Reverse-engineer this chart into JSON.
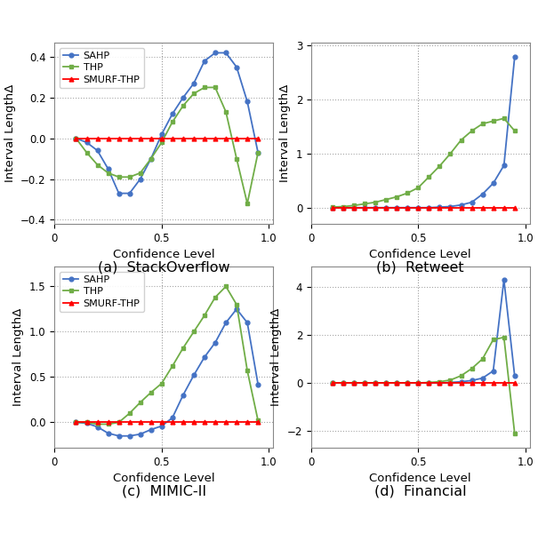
{
  "confidence_levels": [
    0.1,
    0.15,
    0.2,
    0.25,
    0.3,
    0.35,
    0.4,
    0.45,
    0.5,
    0.55,
    0.6,
    0.65,
    0.7,
    0.75,
    0.8,
    0.85,
    0.9,
    0.95
  ],
  "stackoverflow": {
    "SAHP": [
      0.0,
      -0.02,
      -0.06,
      -0.15,
      -0.27,
      -0.27,
      -0.2,
      -0.1,
      0.02,
      0.12,
      0.2,
      0.27,
      0.38,
      0.42,
      0.42,
      0.35,
      0.18,
      -0.07
    ],
    "THP": [
      0.0,
      -0.07,
      -0.13,
      -0.17,
      -0.19,
      -0.19,
      -0.17,
      -0.1,
      -0.02,
      0.08,
      0.16,
      0.22,
      0.25,
      0.25,
      0.13,
      -0.1,
      -0.32,
      -0.07
    ],
    "SMURF-THP": [
      0.0,
      0.0,
      0.0,
      0.0,
      0.0,
      0.0,
      0.0,
      0.0,
      0.0,
      0.0,
      0.0,
      0.0,
      0.0,
      0.0,
      0.0,
      0.0,
      0.0,
      0.0
    ],
    "ylim": [
      -0.42,
      0.47
    ],
    "yticks": [
      -0.4,
      -0.2,
      0.0,
      0.2,
      0.4
    ],
    "title": "(a)  StackOverflow",
    "legend": true
  },
  "retweet": {
    "SAHP": [
      0.0,
      0.0,
      0.0,
      0.0,
      0.0,
      0.0,
      0.0,
      0.0,
      0.0,
      0.0,
      0.01,
      0.02,
      0.05,
      0.1,
      0.25,
      0.45,
      0.78,
      2.78
    ],
    "THP": [
      0.01,
      0.02,
      0.04,
      0.07,
      0.1,
      0.15,
      0.2,
      0.27,
      0.37,
      0.57,
      0.77,
      1.0,
      1.25,
      1.42,
      1.55,
      1.6,
      1.65,
      1.42
    ],
    "SMURF-THP": [
      0.0,
      0.0,
      0.0,
      0.0,
      0.0,
      0.0,
      0.0,
      0.0,
      0.0,
      0.0,
      0.0,
      0.0,
      0.0,
      0.0,
      0.0,
      0.0,
      0.0,
      0.0
    ],
    "ylim": [
      -0.3,
      3.05
    ],
    "yticks": [
      0,
      1,
      2,
      3
    ],
    "title": "(b)  Retweet",
    "legend": false
  },
  "mimic": {
    "SAHP": [
      0.0,
      -0.01,
      -0.05,
      -0.12,
      -0.15,
      -0.15,
      -0.13,
      -0.08,
      -0.04,
      0.05,
      0.3,
      0.52,
      0.72,
      0.88,
      1.1,
      1.25,
      1.1,
      0.42
    ],
    "THP": [
      0.0,
      0.0,
      -0.02,
      -0.02,
      0.0,
      0.1,
      0.22,
      0.33,
      0.43,
      0.62,
      0.82,
      1.0,
      1.18,
      1.38,
      1.5,
      1.3,
      0.57,
      0.02
    ],
    "SMURF-THP": [
      0.0,
      0.0,
      0.0,
      0.0,
      0.0,
      0.0,
      0.0,
      0.0,
      0.0,
      0.0,
      0.0,
      0.0,
      0.0,
      0.0,
      0.0,
      0.0,
      0.0,
      0.0
    ],
    "ylim": [
      -0.28,
      1.72
    ],
    "yticks": [
      0.0,
      0.5,
      1.0,
      1.5
    ],
    "title": "(c)  MIMIC-II",
    "legend": true
  },
  "financial": {
    "SAHP": [
      0.0,
      0.0,
      0.0,
      0.0,
      0.0,
      0.0,
      0.0,
      0.0,
      0.0,
      0.0,
      0.0,
      0.02,
      0.05,
      0.1,
      0.2,
      0.5,
      4.3,
      0.3
    ],
    "THP": [
      0.0,
      0.0,
      0.0,
      0.0,
      0.0,
      0.0,
      0.0,
      0.0,
      0.0,
      0.02,
      0.05,
      0.12,
      0.3,
      0.6,
      1.0,
      1.8,
      1.9,
      -2.1
    ],
    "SMURF-THP": [
      0.0,
      0.0,
      0.0,
      0.0,
      0.0,
      0.0,
      0.0,
      0.0,
      0.0,
      0.0,
      0.0,
      0.0,
      0.0,
      0.0,
      0.0,
      0.0,
      0.0,
      0.0
    ],
    "ylim": [
      -2.7,
      4.85
    ],
    "yticks": [
      -2,
      0,
      2,
      4
    ],
    "title": "(d)  Financial",
    "legend": false
  },
  "colors": {
    "SAHP": "#4472C4",
    "THP": "#70AD47",
    "SMURF-THP": "#FF0000"
  },
  "markers": {
    "SAHP": "o",
    "THP": "s",
    "SMURF-THP": "^"
  },
  "markersize": 3.5,
  "linewidth": 1.3,
  "xlabel": "Confidence Level",
  "ylabel": "Interval LengthΔ",
  "xlabel_fontsize": 9.5,
  "ylabel_fontsize": 9.5,
  "tick_fontsize": 8.5,
  "legend_fontsize": 8.0,
  "caption_fontsize": 11.5
}
